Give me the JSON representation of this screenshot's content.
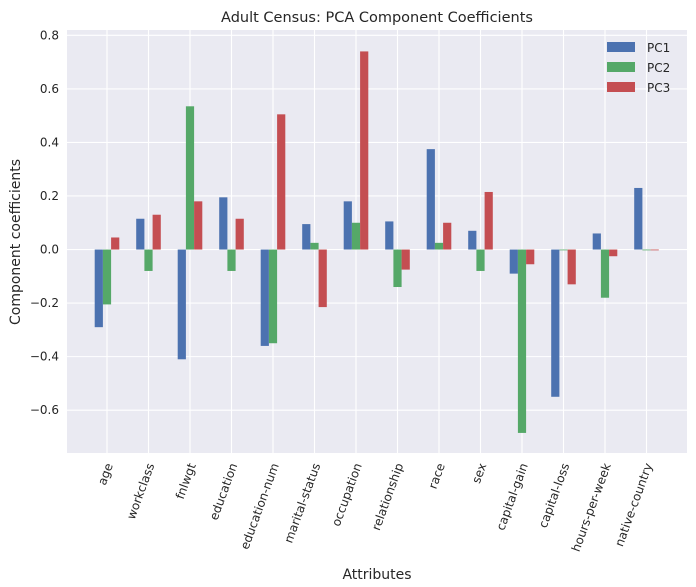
{
  "chart_data": {
    "type": "bar",
    "title": "Adult Census: PCA Component Coefficients",
    "xlabel": "Attributes",
    "ylabel": "Component coefficients",
    "ylim": [
      -0.76,
      0.82
    ],
    "yticks": [
      "0.8",
      "0.6",
      "0.4",
      "0.2",
      "0.0",
      "−0.2",
      "−0.4",
      "−0.6"
    ],
    "ytick_values": [
      0.8,
      0.6,
      0.4,
      0.2,
      0.0,
      -0.2,
      -0.4,
      -0.6
    ],
    "grid": true,
    "legend_position": "top-right",
    "categories": [
      "age",
      "workclass",
      "fnlwgt",
      "education",
      "education-num",
      "marital-status",
      "occupation",
      "relationship",
      "race",
      "sex",
      "capital-gain",
      "capital-loss",
      "hours-per-week",
      "native-country"
    ],
    "series": [
      {
        "name": "PC1",
        "color": "#4c72b0",
        "values": [
          -0.29,
          0.115,
          -0.41,
          0.195,
          -0.36,
          0.095,
          0.18,
          0.105,
          0.375,
          0.07,
          -0.09,
          -0.55,
          0.06,
          0.23
        ]
      },
      {
        "name": "PC2",
        "color": "#55a868",
        "values": [
          -0.205,
          -0.08,
          0.535,
          -0.08,
          -0.35,
          0.025,
          0.1,
          -0.14,
          0.025,
          -0.08,
          -0.685,
          0.0,
          -0.18,
          0.0
        ]
      },
      {
        "name": "PC3",
        "color": "#c44e52",
        "values": [
          0.045,
          0.13,
          0.18,
          0.115,
          0.505,
          -0.215,
          0.74,
          -0.075,
          0.1,
          0.215,
          -0.055,
          -0.13,
          -0.025,
          0.0
        ]
      }
    ]
  }
}
